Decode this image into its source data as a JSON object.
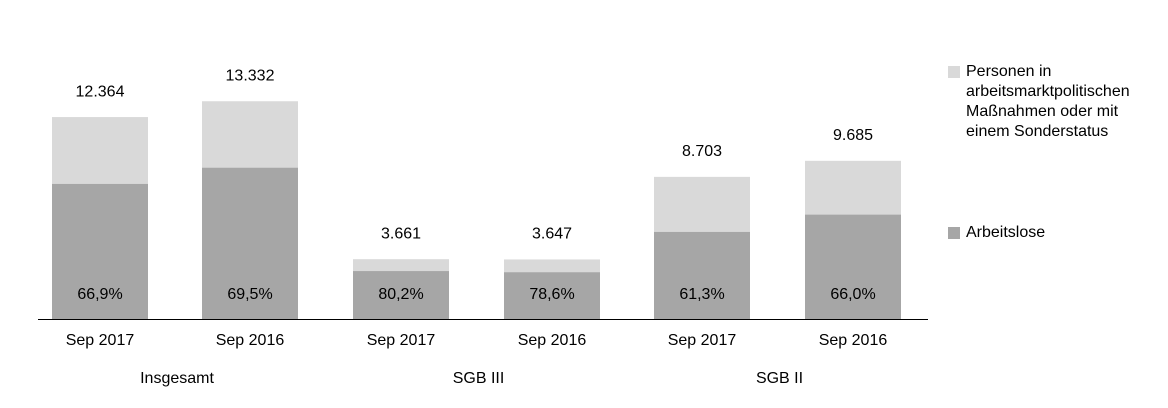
{
  "chart_data": {
    "type": "bar",
    "categories": [
      "Sep 2017",
      "Sep 2016",
      "Sep 2017",
      "Sep 2016",
      "Sep 2017",
      "Sep 2016"
    ],
    "groups": [
      "Insgesamt",
      "SGB III",
      "SGB II"
    ],
    "totals": [
      12364,
      13332,
      3661,
      3647,
      8703,
      9685
    ],
    "total_labels": [
      "12.364",
      "13.332",
      "3.661",
      "3.647",
      "8.703",
      "9.685"
    ],
    "series": [
      {
        "name": "Personen in arbeitsmarktpolitischen Maßnahmen oder mit einem Sonderstatus",
        "color": "#d9d9d9"
      },
      {
        "name": "Arbeitslose",
        "color": "#a6a6a6",
        "values": [
          66.9,
          69.5,
          80.2,
          78.6,
          61.3,
          66.0
        ],
        "value_labels": [
          "66,9%",
          "69,5%",
          "80,2%",
          "78,6%",
          "61,3%",
          "66,0%"
        ]
      }
    ],
    "ylim": [
      0,
      15000
    ]
  }
}
